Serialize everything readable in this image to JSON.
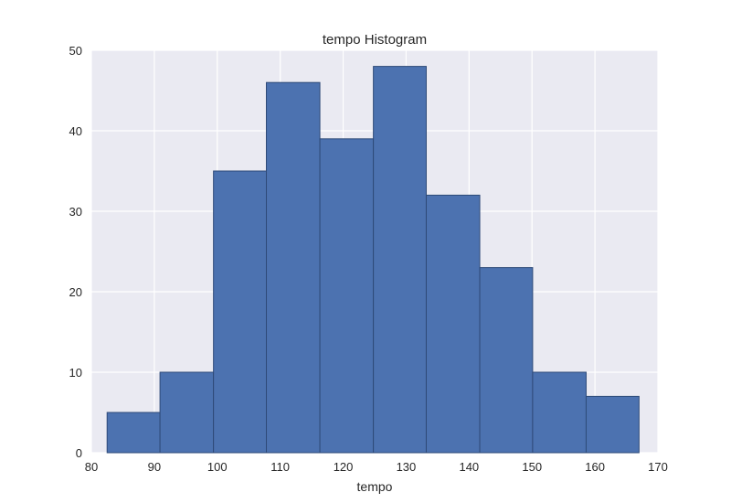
{
  "chart_data": {
    "type": "bar",
    "title": "tempo Histogram",
    "xlabel": "tempo",
    "ylabel": "",
    "xlim": [
      80,
      170
    ],
    "ylim": [
      0,
      50
    ],
    "xticks": [
      80,
      90,
      100,
      110,
      120,
      130,
      140,
      150,
      160,
      170
    ],
    "yticks": [
      0,
      10,
      20,
      30,
      40,
      50
    ],
    "bin_edges": [
      82.5,
      90.9,
      99.4,
      107.8,
      116.3,
      124.8,
      133.2,
      141.7,
      150.1,
      158.6,
      167.0
    ],
    "values": [
      5,
      10,
      35,
      46,
      39,
      48,
      32,
      23,
      10,
      7
    ],
    "grid": true,
    "legend": "none",
    "colors": {
      "bar_fill": "#4c72b0",
      "bar_edge": "#2e4a78",
      "plot_background": "#eaeaf2",
      "grid": "#ffffff"
    }
  }
}
